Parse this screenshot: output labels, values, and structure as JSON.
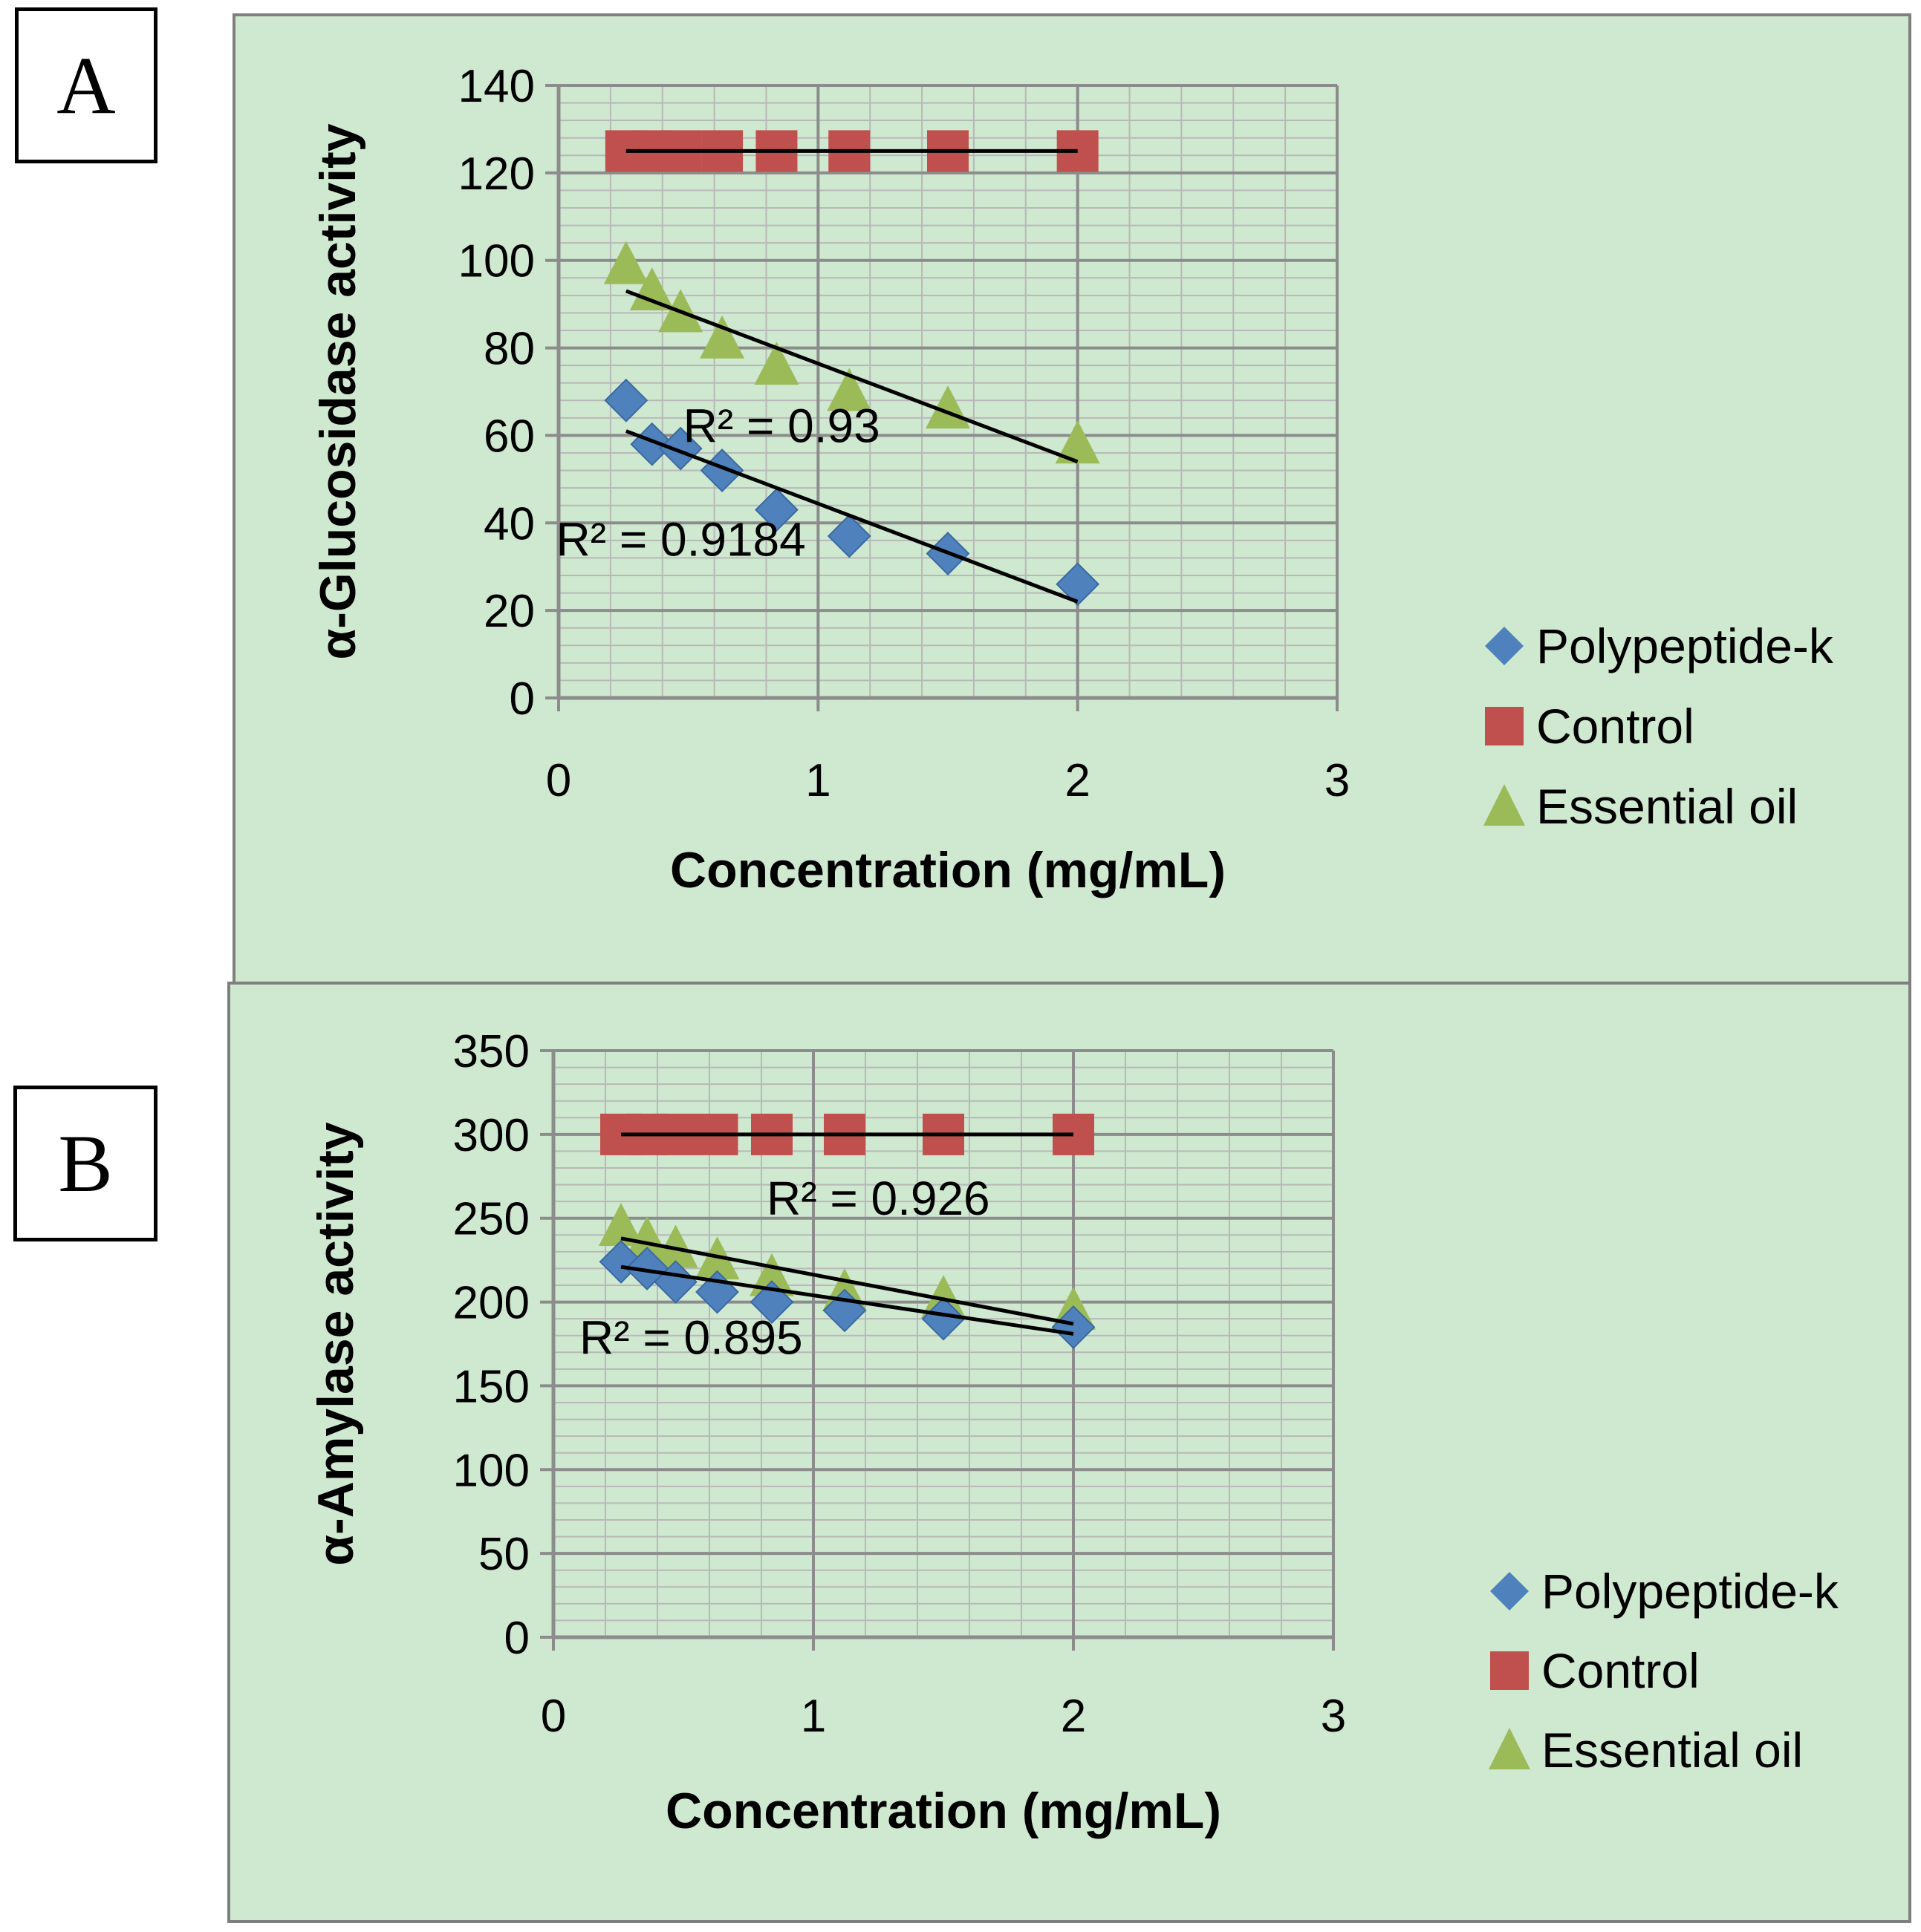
{
  "panels": [
    {
      "tag": "A",
      "chart_data": {
        "type": "scatter",
        "title": "",
        "xlabel": "Concentration (mg/mL)",
        "ylabel": "α-Glucosidase activity",
        "xlim": [
          0,
          3
        ],
        "ylim": [
          0,
          140
        ],
        "xticks": [
          "0",
          "1",
          "2",
          "3"
        ],
        "yticks": [
          "0",
          "20",
          "40",
          "60",
          "80",
          "100",
          "120",
          "140"
        ],
        "grid": true,
        "legend_position": "right",
        "series": [
          {
            "name": "Polypeptide-k",
            "marker": "diamond",
            "color": "#4f81bd",
            "x": [
              0.26,
              0.36,
              0.47,
              0.63,
              0.84,
              1.12,
              1.5,
              2.0
            ],
            "y": [
              68,
              58,
              57,
              52,
              43,
              37,
              33,
              26
            ],
            "trendline": {
              "x": [
                0.26,
                2.0
              ],
              "y": [
                61,
                22
              ]
            }
          },
          {
            "name": "Control",
            "marker": "square",
            "color": "#c0504d",
            "x": [
              0.26,
              0.36,
              0.47,
              0.63,
              0.84,
              1.12,
              1.5,
              2.0
            ],
            "y": [
              125,
              125,
              125,
              125,
              125,
              125,
              125,
              125
            ],
            "trendline": {
              "x": [
                0.26,
                2.0
              ],
              "y": [
                125,
                125
              ]
            }
          },
          {
            "name": "Essential oil",
            "marker": "triangle",
            "color": "#9bbb59",
            "x": [
              0.26,
              0.36,
              0.47,
              0.63,
              0.84,
              1.12,
              1.5,
              2.0
            ],
            "y": [
              99,
              93,
              88,
              82,
              76,
              70,
              66,
              58
            ],
            "trendline": {
              "x": [
                0.26,
                2.0
              ],
              "y": [
                93,
                54
              ]
            }
          }
        ],
        "annotations": [
          {
            "text": "R² = 0.93",
            "x": 0.48,
            "y": 58.5
          },
          {
            "text": "R² = 0.9184",
            "x": -0.01,
            "y": 32.5
          }
        ]
      }
    },
    {
      "tag": "B",
      "chart_data": {
        "type": "scatter",
        "title": "",
        "xlabel": "Concentration (mg/mL)",
        "ylabel": "α-Amylase activity",
        "xlim": [
          0,
          3
        ],
        "ylim": [
          0,
          350
        ],
        "xticks": [
          "0",
          "1",
          "2",
          "3"
        ],
        "yticks": [
          "0",
          "50",
          "100",
          "150",
          "200",
          "250",
          "300",
          "350"
        ],
        "grid": true,
        "legend_position": "bottom-right",
        "series": [
          {
            "name": "Polypeptide-k",
            "marker": "diamond",
            "color": "#4f81bd",
            "x": [
              0.26,
              0.36,
              0.47,
              0.63,
              0.84,
              1.12,
              1.5,
              2.0
            ],
            "y": [
              224,
              220,
              212,
              206,
              200,
              195,
              190,
              185
            ],
            "trendline": {
              "x": [
                0.26,
                2.0
              ],
              "y": [
                221,
                181
              ]
            }
          },
          {
            "name": "Control",
            "marker": "square",
            "color": "#c0504d",
            "x": [
              0.26,
              0.36,
              0.47,
              0.63,
              0.84,
              1.12,
              1.5,
              2.0
            ],
            "y": [
              300,
              300,
              300,
              300,
              300,
              300,
              300,
              300
            ],
            "trendline": {
              "x": [
                0.26,
                2.0
              ],
              "y": [
                300,
                300
              ]
            }
          },
          {
            "name": "Essential oil",
            "marker": "triangle",
            "color": "#9bbb59",
            "x": [
              0.26,
              0.36,
              0.47,
              0.63,
              0.84,
              1.12,
              1.5,
              2.0
            ],
            "y": [
              245,
              237,
              232,
              225,
              215,
              206,
              202,
              195
            ],
            "trendline": {
              "x": [
                0.26,
                2.0
              ],
              "y": [
                238,
                187
              ]
            }
          }
        ],
        "annotations": [
          {
            "text": "R² = 0.926",
            "x": 0.82,
            "y": 252
          },
          {
            "text": "R² = 0.895",
            "x": 0.1,
            "y": 169
          }
        ]
      }
    }
  ]
}
